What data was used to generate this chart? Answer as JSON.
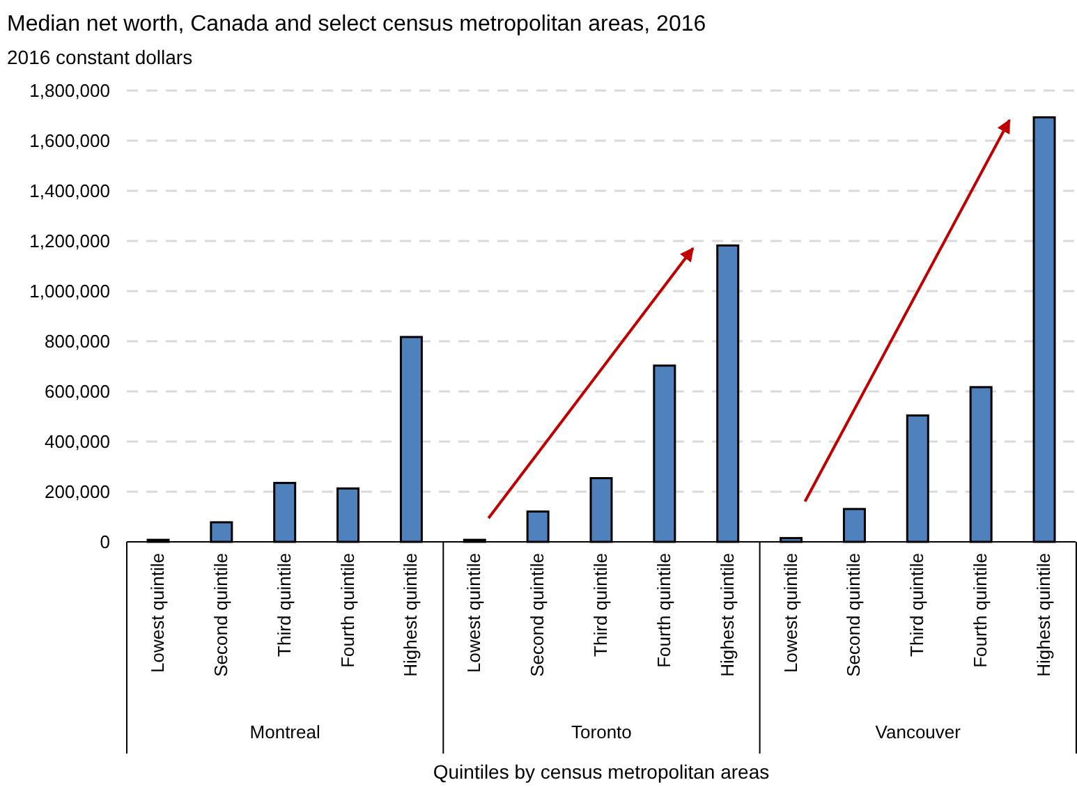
{
  "chart_data": {
    "type": "bar",
    "title": "Median net worth, Canada and select census metropolitan areas, 2016",
    "subtitle": "2016 constant dollars",
    "xlabel": "Quintiles by census metropolitan areas",
    "categories": [
      "Lowest quintile",
      "Second quintile",
      "Third quintile",
      "Fourth quintile",
      "Highest quintile",
      "Lowest quintile",
      "Second quintile",
      "Third quintile",
      "Fourth quintile",
      "Highest quintile",
      "Lowest quintile",
      "Second quintile",
      "Third quintile",
      "Fourth quintile",
      "Highest quintile"
    ],
    "values": [
      8000,
      78000,
      235000,
      213000,
      817000,
      8000,
      121000,
      254000,
      703000,
      1182000,
      15000,
      131000,
      504000,
      617000,
      1693000
    ],
    "color": "#4f81bd",
    "annotations": [
      "Montreal",
      "Toronto",
      "Vancouver"
    ],
    "ylim": [
      0,
      1800000
    ],
    "yticks": [
      {
        "value": 0,
        "label": "0"
      },
      {
        "value": 200000,
        "label": "200,000"
      },
      {
        "value": 400000,
        "label": "400,000"
      },
      {
        "value": 600000,
        "label": "600,000"
      },
      {
        "value": 800000,
        "label": "800,000"
      },
      {
        "value": 1000000,
        "label": "1,000,000"
      },
      {
        "value": 1200000,
        "label": "1,200,000"
      },
      {
        "value": 1400000,
        "label": "1,400,000"
      },
      {
        "value": 1600000,
        "label": "1,600,000"
      },
      {
        "value": 1800000,
        "label": "1,800,000"
      }
    ],
    "grid": "y"
  }
}
